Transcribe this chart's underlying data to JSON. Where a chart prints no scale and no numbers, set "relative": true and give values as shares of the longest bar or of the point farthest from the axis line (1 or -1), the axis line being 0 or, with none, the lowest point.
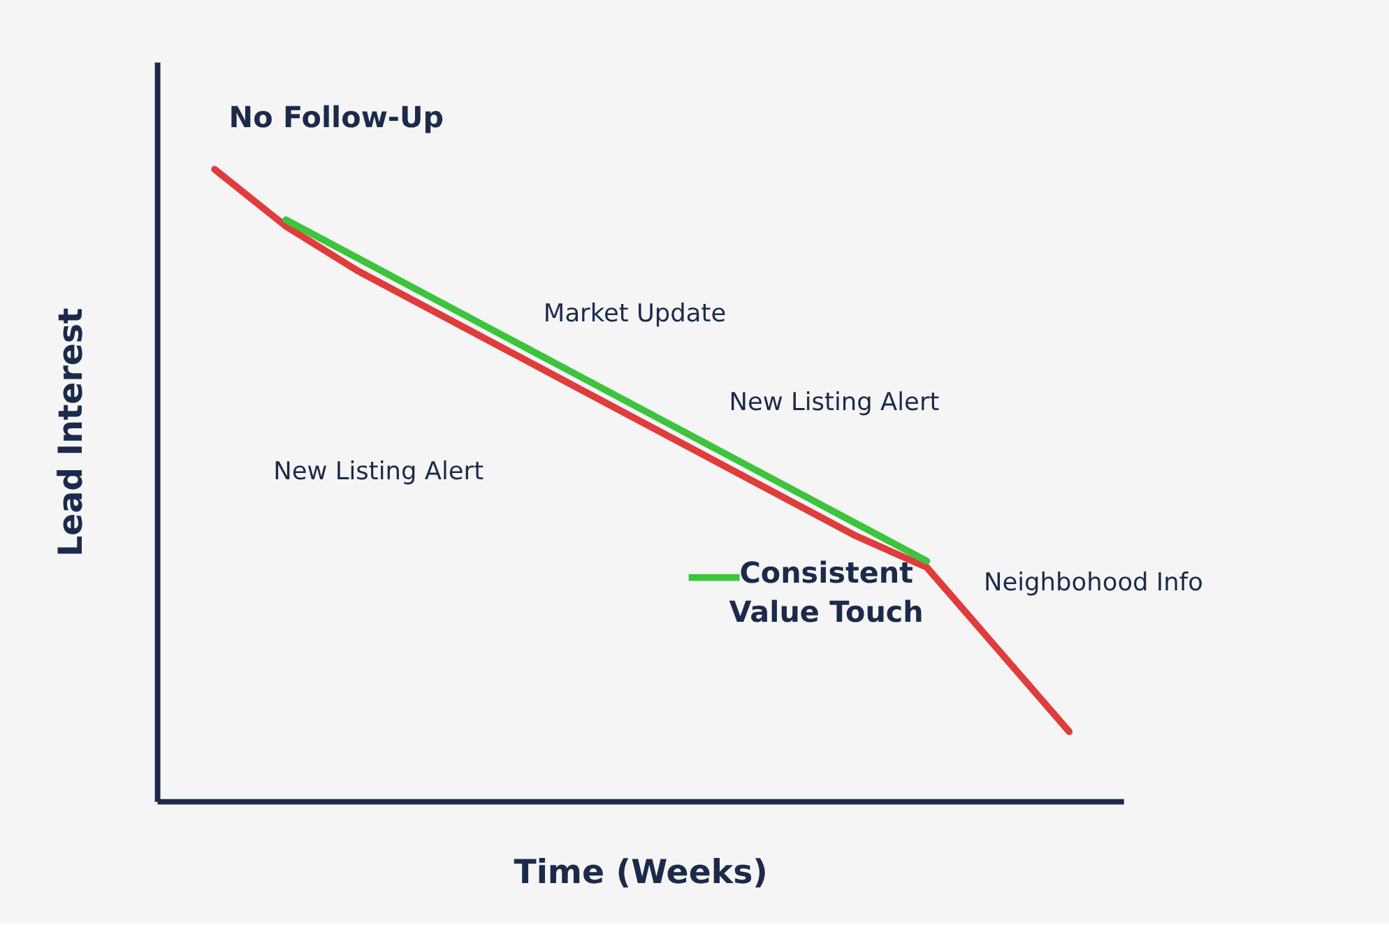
{
  "chart_data": {
    "type": "line",
    "relative": true,
    "xlabel": "Time (Weeks)",
    "ylabel": "Lead Interest",
    "categories": [
      null,
      null,
      null,
      null,
      null,
      null,
      null,
      null,
      null,
      null,
      null,
      null,
      null
    ],
    "series": [
      {
        "name": "No Follow-Up",
        "color": "#e03c3c",
        "values": [
          1.0,
          0.91,
          0.84,
          0.78,
          0.72,
          0.66,
          0.6,
          0.54,
          0.48,
          0.42,
          0.37,
          0.24,
          0.11
        ]
      },
      {
        "name": "Consistent Value Touch",
        "color": "#3cc43c",
        "values": [
          null,
          0.92,
          0.86,
          0.8,
          0.74,
          0.68,
          0.62,
          0.56,
          0.5,
          0.44,
          0.38,
          null,
          null
        ]
      }
    ],
    "annotations": [
      "New Listing Alert",
      "Market Update",
      "New Listing Alert",
      "Neighbohood Info"
    ],
    "legend": "bottom right",
    "tick_labels": false,
    "marker": "none",
    "line_style": "solid"
  }
}
